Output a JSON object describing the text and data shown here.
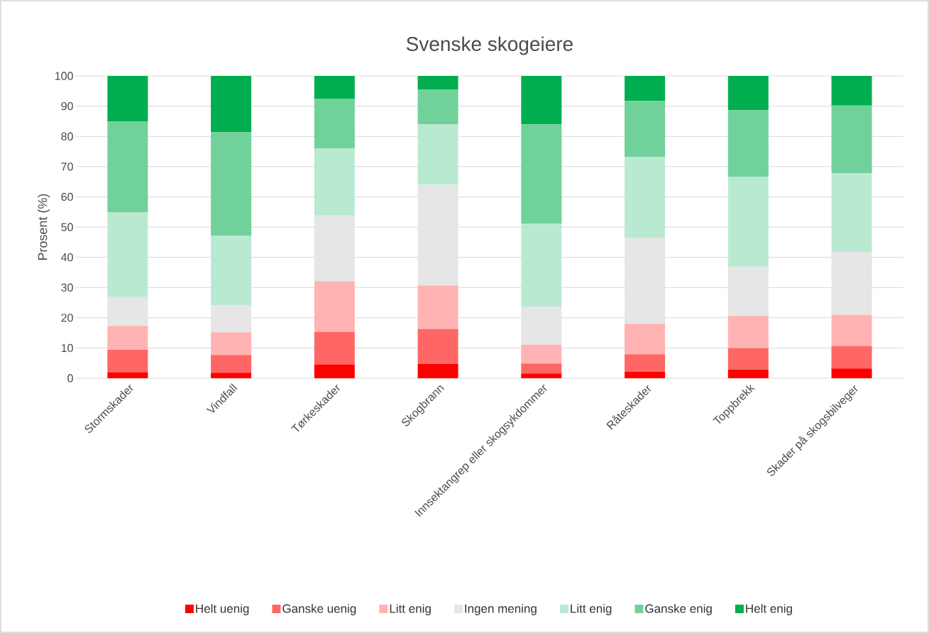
{
  "chart_data": {
    "type": "bar",
    "stacked": true,
    "title": "Svenske skogeiere",
    "ylabel": "Prosent (%)",
    "categories": [
      "Stormskader",
      "Vindfall",
      "Tørkeskader",
      "Skogbrann",
      "Innsektangrep eller skogsykdommer",
      "Råteskader",
      "Toppbrekk",
      "Skader på skogsbilveger"
    ],
    "series": [
      {
        "name": "Helt uenig",
        "color": "#ff0000",
        "values": [
          2.0,
          1.8,
          4.6,
          4.7,
          1.6,
          2.1,
          2.8,
          3.2
        ]
      },
      {
        "name": "Ganske uenig",
        "color": "#ff6666",
        "values": [
          7.4,
          5.9,
          10.7,
          11.6,
          3.3,
          5.8,
          7.2,
          7.5
        ]
      },
      {
        "name": "Litt enig",
        "color": "#ffb3b3",
        "values": [
          7.9,
          7.5,
          16.8,
          14.4,
          6.2,
          10.1,
          10.6,
          10.3
        ]
      },
      {
        "name": "Ingen mening",
        "color": "#e6e6e6",
        "values": [
          9.5,
          8.9,
          21.7,
          33.3,
          12.6,
          28.4,
          16.3,
          20.7
        ]
      },
      {
        "name": "Litt enig",
        "color": "#bae9d1",
        "values": [
          28.1,
          23.1,
          22.2,
          20.0,
          27.4,
          26.8,
          29.7,
          26.1
        ]
      },
      {
        "name": "Ganske enig",
        "color": "#70d19b",
        "values": [
          30.0,
          34.2,
          16.5,
          11.4,
          32.9,
          18.5,
          22.1,
          22.4
        ]
      },
      {
        "name": "Helt enig",
        "color": "#00ae4f",
        "values": [
          15.1,
          18.6,
          7.5,
          4.6,
          16.0,
          8.3,
          11.3,
          9.8
        ]
      }
    ],
    "ylim": [
      0,
      100
    ],
    "yticks": [
      0,
      10,
      20,
      30,
      40,
      50,
      60,
      70,
      80,
      90,
      100
    ],
    "grid": "y",
    "legend": "bottom"
  }
}
